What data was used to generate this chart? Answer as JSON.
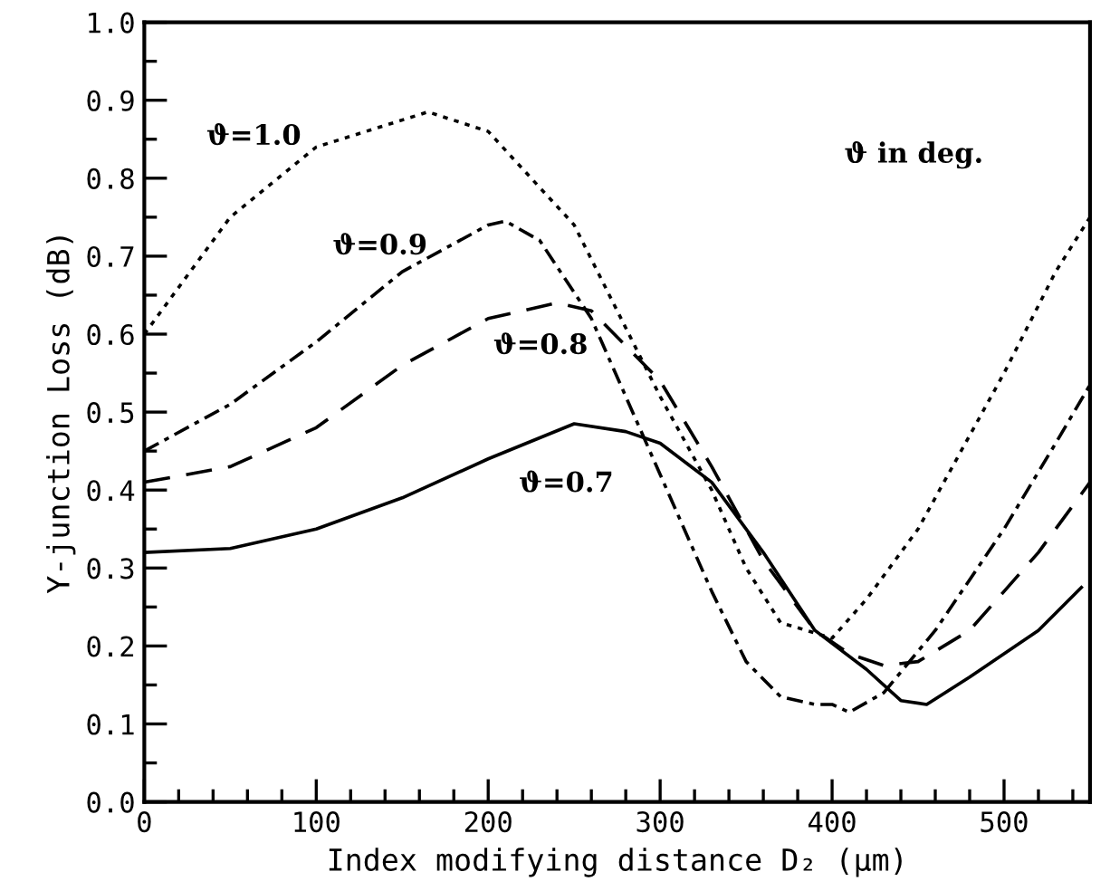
{
  "chart_data": {
    "type": "line",
    "xlabel": "Index modifying distance D₂ (μm)",
    "ylabel": "Y-junction Loss (dB)",
    "xlim": [
      0,
      550
    ],
    "xticks": [
      0,
      100,
      200,
      300,
      400,
      500
    ],
    "ylim": [
      0,
      1
    ],
    "yticks": [
      {
        "value": 0,
        "label": "0.0"
      },
      {
        "value": 0.1,
        "label": "0.1"
      },
      {
        "value": 0.2,
        "label": "0.2"
      },
      {
        "value": 0.3,
        "label": "0.3"
      },
      {
        "value": 0.4,
        "label": "0.4"
      },
      {
        "value": 0.5,
        "label": "0.5"
      },
      {
        "value": 0.6,
        "label": "0.6"
      },
      {
        "value": 0.7,
        "label": "0.7"
      },
      {
        "value": 0.8,
        "label": "0.8"
      },
      {
        "value": 0.9,
        "label": "0.9"
      },
      {
        "value": 1,
        "label": "1.0"
      }
    ],
    "grid": false,
    "legend": false,
    "marker": "none",
    "annotations": [
      "ϑ in deg."
    ],
    "series": [
      {
        "name": "ϑ=1.0",
        "color": "#000000",
        "line_style": "dotted",
        "x": [
          0,
          50,
          100,
          165,
          200,
          250,
          300,
          330,
          350,
          370,
          385,
          400,
          420,
          450,
          500,
          530,
          550
        ],
        "values": [
          0.6,
          0.75,
          0.84,
          0.885,
          0.86,
          0.74,
          0.52,
          0.4,
          0.3,
          0.23,
          0.22,
          0.21,
          0.26,
          0.35,
          0.55,
          0.68,
          0.75
        ]
      },
      {
        "name": "ϑ=0.9",
        "color": "#000000",
        "line_style": "dashdot",
        "x": [
          0,
          50,
          100,
          150,
          200,
          210,
          230,
          260,
          300,
          330,
          350,
          370,
          390,
          400,
          410,
          430,
          460,
          500,
          530,
          550
        ],
        "values": [
          0.45,
          0.51,
          0.59,
          0.68,
          0.74,
          0.745,
          0.72,
          0.62,
          0.42,
          0.27,
          0.18,
          0.135,
          0.125,
          0.125,
          0.115,
          0.14,
          0.22,
          0.35,
          0.46,
          0.535
        ]
      },
      {
        "name": "ϑ=0.8",
        "color": "#000000",
        "line_style": "dashed",
        "x": [
          0,
          50,
          100,
          150,
          200,
          240,
          260,
          300,
          330,
          360,
          390,
          410,
          430,
          450,
          480,
          520,
          550
        ],
        "values": [
          0.41,
          0.43,
          0.48,
          0.56,
          0.62,
          0.64,
          0.63,
          0.54,
          0.43,
          0.31,
          0.22,
          0.19,
          0.175,
          0.18,
          0.22,
          0.32,
          0.41
        ]
      },
      {
        "name": "ϑ=0.7",
        "color": "#000000",
        "line_style": "solid",
        "x": [
          0,
          50,
          100,
          150,
          200,
          250,
          280,
          300,
          330,
          360,
          390,
          420,
          440,
          455,
          480,
          520,
          545
        ],
        "values": [
          0.32,
          0.325,
          0.35,
          0.39,
          0.44,
          0.485,
          0.475,
          0.46,
          0.41,
          0.32,
          0.22,
          0.17,
          0.13,
          0.125,
          0.16,
          0.22,
          0.275
        ]
      }
    ]
  }
}
